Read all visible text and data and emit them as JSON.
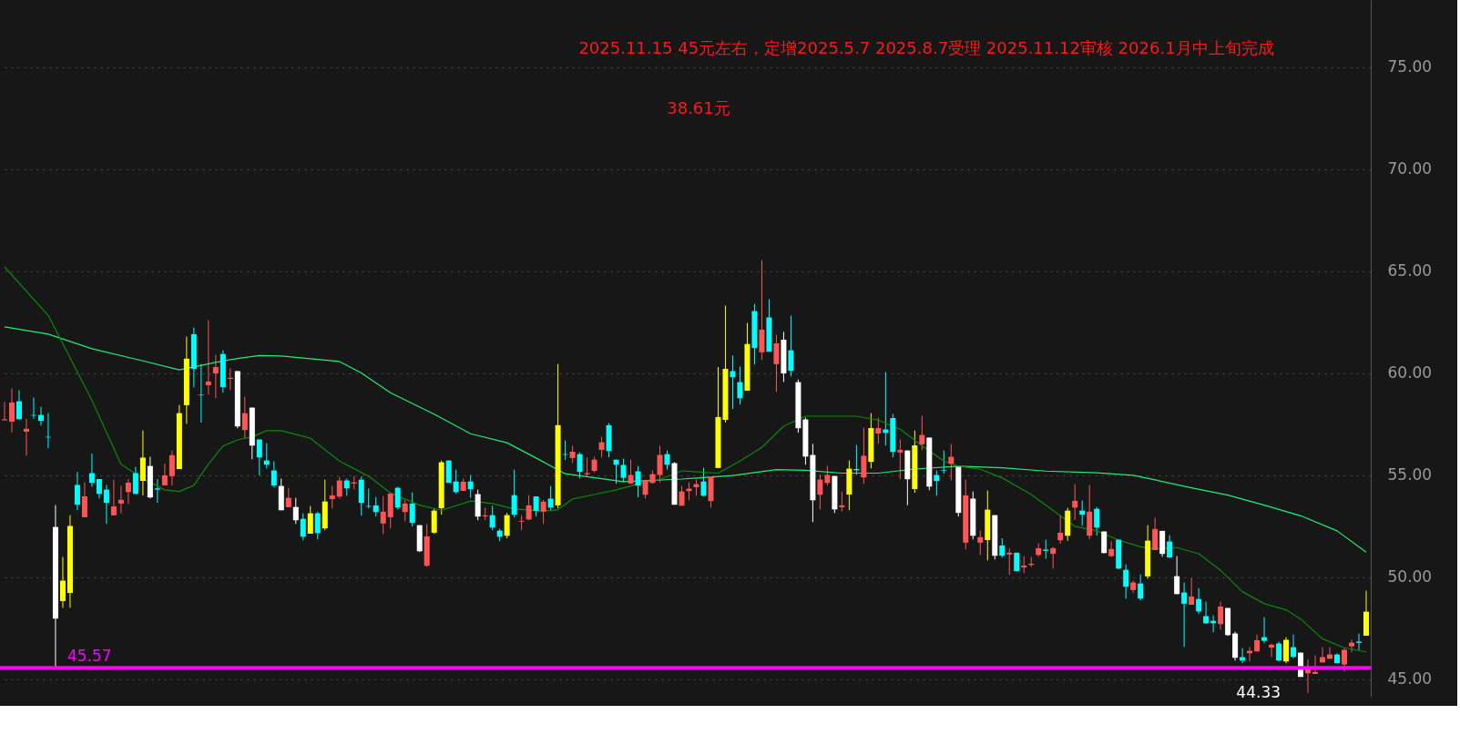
{
  "chart_data": {
    "type": "candlestick",
    "categories": [
      null,
      null,
      null,
      null,
      null,
      null,
      null,
      null,
      null,
      null,
      null,
      null,
      null,
      null,
      null,
      null,
      null,
      null,
      null,
      null,
      null,
      null,
      null,
      null,
      null,
      null,
      null,
      null,
      null,
      null,
      null,
      null,
      null,
      null,
      null,
      null,
      null,
      null,
      null,
      null,
      null,
      null,
      null,
      null,
      null,
      null,
      null,
      null,
      null,
      null,
      null,
      null,
      null,
      null,
      null,
      null,
      null,
      null,
      null,
      null,
      null,
      null,
      null,
      null,
      null,
      null,
      null,
      null,
      null,
      null,
      null,
      null,
      null,
      null,
      null,
      null,
      null,
      null,
      null,
      null,
      null,
      null,
      null,
      null,
      null,
      null,
      null,
      null,
      null,
      null,
      null,
      null,
      null,
      null,
      null,
      null,
      null,
      null,
      null,
      null,
      null,
      null,
      null,
      null,
      null,
      null,
      null,
      null,
      null,
      null,
      null,
      null,
      null,
      null,
      null,
      null,
      null,
      null,
      null,
      null,
      null,
      null,
      null,
      null,
      null,
      null,
      null,
      null,
      null,
      null,
      null,
      null,
      null,
      null,
      null,
      null,
      null,
      null,
      null,
      null,
      null,
      null,
      null,
      null,
      null,
      null,
      null,
      null,
      null,
      null,
      null,
      null,
      null,
      null,
      null,
      null,
      null,
      null,
      null,
      null,
      null,
      null,
      null,
      null,
      null,
      null,
      null,
      null,
      null,
      null,
      null,
      null,
      null,
      null,
      null,
      null,
      null,
      null,
      null,
      null,
      null,
      null,
      null,
      null,
      null,
      null,
      null,
      null
    ],
    "ohlc": [
      [
        57.7,
        58.6,
        57.7,
        57.75
      ],
      [
        57.63,
        59.26,
        57.11,
        58.57
      ],
      [
        58.63,
        59.17,
        57.75,
        57.75
      ],
      [
        57.14,
        57.78,
        55.97,
        57.28
      ],
      [
        57.96,
        58.81,
        57.78,
        57.93
      ],
      [
        57.96,
        58.36,
        57.44,
        57.67
      ],
      [
        56.89,
        58.05,
        56.33,
        56.86
      ],
      [
        52.47,
        53.54,
        45.57,
        47.98
      ],
      [
        48.84,
        51.0,
        48.51,
        49.84
      ],
      [
        49.24,
        53.05,
        48.51,
        52.52
      ],
      [
        54.53,
        55.17,
        53.29,
        53.56
      ],
      [
        52.95,
        54.66,
        52.95,
        53.97
      ],
      [
        55.11,
        56.07,
        54.44,
        54.63
      ],
      [
        54.82,
        54.82,
        53.87,
        54.09
      ],
      [
        54.3,
        54.53,
        52.62,
        53.65
      ],
      [
        53.04,
        54.78,
        53.04,
        53.48
      ],
      [
        53.62,
        54.48,
        53.13,
        53.8
      ],
      [
        54.18,
        54.82,
        53.6,
        54.64
      ],
      [
        55.11,
        55.42,
        54.09,
        54.09
      ],
      [
        54.73,
        57.2,
        54.01,
        55.87
      ],
      [
        55.46,
        55.91,
        53.87,
        53.92
      ],
      [
        54.36,
        54.82,
        53.65,
        54.3
      ],
      [
        54.51,
        55.58,
        54.51,
        55.0
      ],
      [
        54.96,
        56.22,
        54.51,
        55.99
      ],
      [
        55.31,
        58.45,
        55.31,
        58.05
      ],
      [
        58.44,
        61.8,
        57.53,
        60.72
      ],
      [
        61.92,
        62.25,
        59.32,
        60.22
      ],
      [
        58.95,
        60.46,
        57.58,
        58.92
      ],
      [
        59.42,
        62.61,
        58.96,
        59.6
      ],
      [
        60.0,
        60.91,
        58.78,
        60.31
      ],
      [
        60.95,
        61.13,
        59.05,
        59.32
      ],
      [
        59.73,
        60.24,
        59.18,
        59.78
      ],
      [
        60.11,
        60.11,
        57.31,
        57.4
      ],
      [
        57.22,
        58.86,
        56.82,
        58.05
      ],
      [
        58.32,
        58.32,
        55.79,
        56.46
      ],
      [
        56.76,
        56.76,
        54.99,
        55.88
      ],
      [
        55.73,
        56.58,
        55.34,
        55.52
      ],
      [
        55.24,
        55.69,
        54.41,
        54.5
      ],
      [
        54.48,
        54.84,
        53.29,
        53.29
      ],
      [
        53.44,
        54.39,
        53.44,
        53.9
      ],
      [
        53.45,
        53.9,
        52.62,
        52.8
      ],
      [
        52.87,
        53.14,
        51.82,
        51.99
      ],
      [
        52.14,
        53.5,
        52.14,
        53.14
      ],
      [
        53.14,
        53.22,
        51.86,
        52.17
      ],
      [
        52.4,
        54.79,
        52.31,
        53.72
      ],
      [
        53.84,
        54.48,
        53.38,
        54.02
      ],
      [
        53.96,
        54.93,
        53.87,
        54.75
      ],
      [
        54.75,
        54.84,
        54.0,
        54.36
      ],
      [
        54.6,
        54.97,
        54.32,
        54.66
      ],
      [
        54.79,
        54.93,
        53.02,
        53.65
      ],
      [
        53.5,
        54.35,
        53.38,
        53.47
      ],
      [
        53.53,
        53.94,
        52.98,
        53.2
      ],
      [
        52.64,
        53.99,
        52.13,
        53.22
      ],
      [
        52.95,
        54.11,
        52.4,
        54.11
      ],
      [
        54.39,
        54.44,
        53.33,
        53.42
      ],
      [
        53.2,
        53.8,
        52.75,
        53.62
      ],
      [
        53.62,
        54.17,
        52.49,
        52.67
      ],
      [
        52.56,
        52.56,
        51.24,
        51.28
      ],
      [
        50.57,
        52.61,
        50.52,
        52.01
      ],
      [
        52.19,
        53.39,
        52.13,
        53.27
      ],
      [
        53.39,
        55.73,
        53.08,
        55.64
      ],
      [
        55.73,
        55.73,
        54.63,
        54.63
      ],
      [
        54.7,
        55.28,
        54.09,
        54.18
      ],
      [
        54.24,
        54.84,
        54.24,
        54.69
      ],
      [
        54.7,
        55.02,
        53.9,
        54.32
      ],
      [
        54.08,
        54.3,
        52.8,
        52.98
      ],
      [
        52.99,
        53.41,
        52.8,
        53.04
      ],
      [
        53.05,
        53.51,
        52.31,
        52.44
      ],
      [
        52.29,
        52.38,
        51.77,
        51.99
      ],
      [
        52.04,
        53.16,
        51.91,
        53.05
      ],
      [
        54.03,
        55.28,
        52.93,
        53.07
      ],
      [
        52.73,
        53.05,
        52.31,
        52.77
      ],
      [
        52.84,
        54.03,
        52.8,
        53.53
      ],
      [
        53.97,
        53.97,
        52.98,
        53.26
      ],
      [
        53.22,
        53.8,
        52.62,
        53.71
      ],
      [
        53.86,
        54.48,
        53.29,
        53.42
      ],
      [
        53.53,
        60.46,
        53.39,
        57.46
      ],
      [
        56.04,
        56.71,
        55.75,
        56.01
      ],
      [
        55.85,
        56.45,
        55.61,
        56.16
      ],
      [
        56.04,
        56.13,
        54.85,
        55.17
      ],
      [
        55.05,
        55.87,
        54.96,
        55.11
      ],
      [
        55.22,
        55.91,
        55.14,
        55.77
      ],
      [
        56.25,
        56.89,
        55.88,
        56.62
      ],
      [
        57.46,
        57.56,
        55.88,
        56.19
      ],
      [
        55.77,
        55.77,
        54.58,
        55.52
      ],
      [
        55.51,
        55.82,
        54.66,
        54.88
      ],
      [
        54.6,
        55.77,
        54.6,
        55.02
      ],
      [
        55.2,
        55.46,
        53.92,
        54.5
      ],
      [
        54.05,
        54.79,
        53.87,
        54.75
      ],
      [
        54.63,
        55.24,
        54.58,
        55.06
      ],
      [
        55.02,
        56.45,
        54.66,
        56.0
      ],
      [
        56.04,
        56.22,
        55.28,
        55.52
      ],
      [
        55.6,
        55.64,
        53.56,
        53.56
      ],
      [
        53.51,
        54.48,
        53.51,
        54.21
      ],
      [
        54.23,
        54.66,
        53.78,
        54.35
      ],
      [
        54.42,
        54.79,
        54.0,
        54.57
      ],
      [
        54.7,
        55.37,
        53.96,
        54.0
      ],
      [
        53.74,
        54.91,
        53.42,
        54.91
      ],
      [
        55.36,
        60.31,
        55.36,
        57.86
      ],
      [
        57.72,
        63.32,
        57.59,
        60.22
      ],
      [
        60.11,
        60.87,
        58.25,
        59.81
      ],
      [
        59.57,
        60.33,
        58.47,
        58.78
      ],
      [
        59.15,
        62.47,
        59.15,
        61.44
      ],
      [
        63.05,
        63.41,
        60.43,
        61.24
      ],
      [
        61.03,
        65.55,
        60.66,
        62.14
      ],
      [
        62.74,
        63.63,
        61.06,
        61.06
      ],
      [
        60.45,
        61.89,
        59.09,
        61.47
      ],
      [
        61.65,
        62.03,
        59.58,
        60.0
      ],
      [
        61.13,
        62.83,
        59.85,
        60.12
      ],
      [
        59.57,
        59.7,
        57.09,
        57.31
      ],
      [
        57.74,
        57.83,
        55.52,
        55.92
      ],
      [
        56.0,
        56.54,
        52.71,
        53.78
      ],
      [
        54.05,
        55.05,
        53.33,
        54.79
      ],
      [
        54.63,
        55.46,
        54.5,
        55.02
      ],
      [
        54.97,
        54.97,
        53.15,
        53.33
      ],
      [
        53.44,
        54.21,
        53.24,
        53.53
      ],
      [
        54.06,
        55.73,
        53.29,
        55.33
      ],
      [
        55.31,
        56.49,
        55.02,
        55.25
      ],
      [
        54.9,
        57.34,
        54.58,
        55.96
      ],
      [
        55.66,
        58.05,
        55.34,
        57.32
      ],
      [
        57.05,
        57.83,
        56.55,
        57.32
      ],
      [
        57.25,
        60.06,
        56.46,
        57.08
      ],
      [
        57.81,
        58.01,
        55.88,
        56.15
      ],
      [
        56.12,
        56.76,
        54.81,
        56.25
      ],
      [
        56.22,
        56.22,
        53.54,
        54.81
      ],
      [
        54.33,
        57.2,
        54.15,
        56.47
      ],
      [
        56.52,
        57.92,
        56.24,
        56.98
      ],
      [
        56.85,
        56.85,
        54.27,
        54.45
      ],
      [
        55.02,
        55.24,
        54.0,
        54.72
      ],
      [
        55.25,
        56.22,
        55.08,
        55.22
      ],
      [
        55.57,
        56.54,
        54.76,
        55.91
      ],
      [
        55.42,
        55.42,
        52.98,
        53.16
      ],
      [
        51.7,
        54.79,
        51.37,
        54.02
      ],
      [
        53.86,
        54.21,
        51.86,
        52.04
      ],
      [
        51.7,
        52.29,
        51.1,
        51.97
      ],
      [
        51.83,
        54.26,
        50.83,
        53.32
      ],
      [
        53.05,
        53.05,
        50.88,
        51.06
      ],
      [
        51.56,
        51.92,
        50.97,
        51.06
      ],
      [
        51.12,
        51.42,
        50.12,
        51.21
      ],
      [
        51.21,
        51.21,
        50.3,
        50.3
      ],
      [
        50.49,
        51.04,
        50.21,
        50.58
      ],
      [
        50.61,
        51.0,
        50.52,
        50.67
      ],
      [
        51.1,
        51.67,
        51.01,
        51.43
      ],
      [
        51.36,
        51.85,
        50.92,
        51.3
      ],
      [
        51.15,
        51.49,
        50.43,
        51.43
      ],
      [
        51.82,
        53.05,
        51.65,
        52.19
      ],
      [
        52.04,
        53.41,
        51.79,
        53.27
      ],
      [
        53.42,
        54.57,
        52.81,
        53.75
      ],
      [
        53.27,
        53.77,
        52.53,
        53.07
      ],
      [
        52.04,
        54.53,
        51.86,
        53.22
      ],
      [
        53.36,
        53.45,
        52.05,
        52.44
      ],
      [
        52.25,
        52.25,
        51.19,
        51.19
      ],
      [
        51.04,
        51.76,
        51.0,
        51.39
      ],
      [
        51.85,
        51.85,
        50.39,
        50.43
      ],
      [
        50.37,
        50.64,
        48.96,
        49.54
      ],
      [
        49.38,
        49.84,
        49.23,
        49.75
      ],
      [
        49.7,
        50.15,
        48.87,
        48.96
      ],
      [
        50.05,
        52.56,
        49.94,
        51.8
      ],
      [
        51.34,
        52.92,
        51.34,
        52.37
      ],
      [
        52.28,
        52.28,
        51.01,
        51.15
      ],
      [
        51.76,
        52.07,
        50.97,
        50.97
      ],
      [
        50.06,
        51.04,
        49.18,
        49.18
      ],
      [
        49.26,
        49.75,
        46.59,
        48.71
      ],
      [
        48.66,
        49.97,
        48.66,
        49.06
      ],
      [
        48.94,
        49.48,
        48.2,
        48.33
      ],
      [
        48.1,
        48.81,
        47.71,
        47.75
      ],
      [
        47.87,
        48.14,
        47.31,
        47.75
      ],
      [
        47.71,
        48.81,
        47.44,
        48.57
      ],
      [
        48.5,
        48.5,
        47.13,
        47.17
      ],
      [
        47.25,
        47.34,
        45.92,
        46.06
      ],
      [
        46.09,
        46.53,
        45.79,
        45.92
      ],
      [
        46.28,
        46.58,
        45.88,
        46.4
      ],
      [
        46.37,
        47.2,
        46.37,
        46.92
      ],
      [
        47.07,
        48.05,
        46.77,
        46.89
      ],
      [
        46.56,
        46.76,
        46.1,
        46.7
      ],
      [
        46.76,
        46.85,
        45.88,
        45.92
      ],
      [
        45.88,
        47.07,
        45.79,
        46.94
      ],
      [
        46.58,
        47.2,
        46.03,
        46.1
      ],
      [
        46.31,
        46.31,
        45.12,
        45.12
      ],
      [
        45.3,
        45.99,
        44.33,
        45.54
      ],
      [
        45.27,
        46.18,
        45.27,
        45.36
      ],
      [
        45.83,
        46.58,
        45.83,
        46.09
      ],
      [
        46.01,
        46.58,
        46.01,
        46.22
      ],
      [
        46.22,
        46.27,
        45.79,
        45.79
      ],
      [
        45.73,
        46.53,
        45.39,
        46.45
      ],
      [
        46.62,
        46.94,
        46.33,
        46.8
      ],
      [
        46.85,
        47.25,
        46.4,
        46.79
      ],
      [
        47.14,
        49.35,
        47.14,
        48.32
      ]
    ],
    "colors": [
      "#ff5555",
      "#ff5555",
      "#00ffff",
      "#ff5555",
      "#00ffff",
      "#00ffff",
      "#00ffff",
      "#ffffff",
      "#ffff00",
      "#ffff00",
      "#00ffff",
      "#ff5555",
      "#00ffff",
      "#00ffff",
      "#00ffff",
      "#ff5555",
      "#ff5555",
      "#ff5555",
      "#00ffff",
      "#ffff00",
      "#ffffff",
      "#00ffff",
      "#ff5555",
      "#ff5555",
      "#ffff00",
      "#ffff00",
      "#00ffff",
      "#00ffff",
      "#ff5555",
      "#ff5555",
      "#00ffff",
      "#ff5555",
      "#ffffff",
      "#ff5555",
      "#ffffff",
      "#00ffff",
      "#00ffff",
      "#00ffff",
      "#ffffff",
      "#ff5555",
      "#ffffff",
      "#00ffff",
      "#ffff00",
      "#00ffff",
      "#ffff00",
      "#ff5555",
      "#ff5555",
      "#00ffff",
      "#ff5555",
      "#00ffff",
      "#00ffff",
      "#00ffff",
      "#ff5555",
      "#ff5555",
      "#00ffff",
      "#ff5555",
      "#00ffff",
      "#ffffff",
      "#ff5555",
      "#ffff00",
      "#ffff00",
      "#00ffff",
      "#00ffff",
      "#ff5555",
      "#00ffff",
      "#ffffff",
      "#ff5555",
      "#00ffff",
      "#00ffff",
      "#ffff00",
      "#00ffff",
      "#ff5555",
      "#ff5555",
      "#00ffff",
      "#ff5555",
      "#00ffff",
      "#ffff00",
      "#00ffff",
      "#ff5555",
      "#00ffff",
      "#ff5555",
      "#ff5555",
      "#ff5555",
      "#00ffff",
      "#00ffff",
      "#00ffff",
      "#ff5555",
      "#00ffff",
      "#ff5555",
      "#ff5555",
      "#ff5555",
      "#00ffff",
      "#ffffff",
      "#ff5555",
      "#ff5555",
      "#ff5555",
      "#00ffff",
      "#ff5555",
      "#ffff00",
      "#ffff00",
      "#00ffff",
      "#00ffff",
      "#ffff00",
      "#00ffff",
      "#ff5555",
      "#00ffff",
      "#ff5555",
      "#ffffff",
      "#00ffff",
      "#ffffff",
      "#ffffff",
      "#ffffff",
      "#ff5555",
      "#ff5555",
      "#ffffff",
      "#ff5555",
      "#ffff00",
      "#00ffff",
      "#ff5555",
      "#ffff00",
      "#ff5555",
      "#00ffff",
      "#00ffff",
      "#ff5555",
      "#ffffff",
      "#ffff00",
      "#ff5555",
      "#ffffff",
      "#00ffff",
      "#00ffff",
      "#ff5555",
      "#ffffff",
      "#ff5555",
      "#ffffff",
      "#ff5555",
      "#ffff00",
      "#ffffff",
      "#00ffff",
      "#ff5555",
      "#00ffff",
      "#ff5555",
      "#ff5555",
      "#ff5555",
      "#00ffff",
      "#ff5555",
      "#ff5555",
      "#ffff00",
      "#ff5555",
      "#00ffff",
      "#ff5555",
      "#00ffff",
      "#ffffff",
      "#ff5555",
      "#00ffff",
      "#00ffff",
      "#ff5555",
      "#00ffff",
      "#ffff00",
      "#ff5555",
      "#ffffff",
      "#00ffff",
      "#ffffff",
      "#00ffff",
      "#ff5555",
      "#00ffff",
      "#00ffff",
      "#00ffff",
      "#ff5555",
      "#ffffff",
      "#ffffff",
      "#00ffff",
      "#ff5555",
      "#ff5555",
      "#00ffff",
      "#ff5555",
      "#00ffff",
      "#ffff00",
      "#00ffff",
      "#ffffff",
      "#ff5555",
      "#ff5555",
      "#ff5555",
      "#ff5555",
      "#00ffff",
      "#ff5555",
      "#ff5555",
      "#00ffff",
      "#ffff00"
    ],
    "series": [
      {
        "type": "line",
        "color": "#22ee77",
        "values": [
          62.28,
          null,
          null,
          null,
          null,
          null,
          61.92,
          null,
          null,
          null,
          null,
          null,
          61.21,
          null,
          null,
          null,
          null,
          null,
          null,
          60.61,
          null,
          null,
          null,
          null,
          60.17,
          null,
          null,
          null,
          null,
          60.54,
          null,
          null,
          60.73,
          null,
          null,
          60.87,
          null,
          null,
          60.85,
          null,
          null,
          null,
          null,
          null,
          null,
          null,
          60.58,
          null,
          null,
          60.02,
          null,
          null,
          null,
          59.05,
          null,
          null,
          null,
          null,
          null,
          58.0,
          null,
          null,
          null,
          null,
          57.04,
          null,
          null,
          null,
          null,
          56.6,
          null,
          null,
          null,
          55.85,
          null,
          null,
          null,
          55.08,
          null,
          null,
          null,
          null,
          null,
          null,
          null,
          54.69,
          null,
          null,
          null,
          null,
          null,
          null,
          null,
          54.82,
          null,
          null,
          null,
          null,
          null,
          null,
          54.99,
          null,
          null,
          null,
          null,
          null,
          55.28,
          null,
          null,
          null,
          55.25,
          null,
          null,
          null,
          null,
          55.11,
          null,
          null,
          null,
          null,
          55.11,
          null,
          null,
          null,
          null,
          55.31,
          null,
          null,
          null,
          null,
          null,
          55.45,
          null,
          null,
          null,
          null,
          null,
          55.37,
          null,
          null,
          null,
          null,
          null,
          55.21,
          null,
          null,
          null,
          null,
          null,
          null,
          55.13,
          null,
          null,
          null,
          null,
          55.0,
          null,
          null,
          54.78,
          null,
          null,
          null,
          null,
          54.39,
          null,
          null,
          null,
          null,
          54.03,
          null,
          null,
          null,
          null,
          53.54,
          null,
          null,
          null,
          null,
          53.02,
          null,
          null,
          null,
          null,
          52.28,
          null,
          null,
          null,
          51.24
        ]
      },
      {
        "type": "line",
        "color": "#0a8a0a",
        "values": [
          65.22,
          null,
          null,
          null,
          null,
          null,
          62.84,
          null,
          null,
          null,
          null,
          null,
          58.68,
          null,
          null,
          null,
          55.55,
          null,
          null,
          54.84,
          null,
          null,
          54.29,
          null,
          54.21,
          null,
          54.51,
          null,
          55.55,
          null,
          56.44,
          null,
          56.74,
          null,
          56.89,
          null,
          57.19,
          null,
          57.19,
          null,
          null,
          null,
          56.82,
          null,
          null,
          null,
          55.7,
          null,
          null,
          null,
          54.96,
          null,
          null,
          54.14,
          null,
          null,
          null,
          53.54,
          null,
          null,
          53.29,
          null,
          null,
          null,
          53.74,
          null,
          null,
          53.62,
          null,
          null,
          53.35,
          null,
          null,
          null,
          53.25,
          null,
          53.32,
          null,
          53.84,
          null,
          null,
          54.06,
          null,
          null,
          54.29,
          null,
          null,
          54.58,
          null,
          null,
          54.81,
          null,
          null,
          55.22,
          null,
          null,
          null,
          null,
          55.11,
          null,
          null,
          55.7,
          null,
          null,
          56.37,
          null,
          null,
          57.41,
          null,
          null,
          57.9,
          null,
          null,
          57.9,
          null,
          null,
          null,
          57.9,
          null,
          null,
          57.71,
          null,
          null,
          57.26,
          null,
          null,
          56.45,
          null,
          null,
          55.7,
          null,
          55.45,
          null,
          null,
          55.3,
          null,
          null,
          54.88,
          null,
          null,
          null,
          54.06,
          null,
          null,
          null,
          53.02,
          null,
          52.5,
          null,
          null,
          52.28,
          null,
          null,
          51.83,
          null,
          null,
          51.5,
          null,
          51.39,
          null,
          null,
          51.46,
          null,
          null,
          51.16,
          null,
          null,
          50.34,
          null,
          null,
          49.3,
          null,
          null,
          48.71,
          null,
          null,
          48.41,
          null,
          47.96,
          null,
          null,
          46.99,
          null,
          null,
          46.55,
          null,
          null,
          46.35
        ]
      }
    ],
    "ylim": [
      44.15,
      78.3
    ],
    "yticks": [
      {
        "value": 45,
        "label": "45.00"
      },
      {
        "value": 50,
        "label": "50.00"
      },
      {
        "value": 55,
        "label": "55.00"
      },
      {
        "value": 60,
        "label": "60.00"
      },
      {
        "value": 65,
        "label": "65.00"
      },
      {
        "value": 70,
        "label": "70.00"
      },
      {
        "value": 75,
        "label": "75.00"
      }
    ],
    "grid": "y",
    "tick_labels": "y",
    "ref_lines": [
      {
        "axis": "y",
        "value": 45.57,
        "label": "45.57",
        "color": "#ff00ff"
      }
    ],
    "annotations": [
      "2025.11.15  45元左右，定增2025.5.7 2025.8.7受理 2025.11.12审核 2026.1月中上旬完成",
      "38.61元",
      "44.33"
    ]
  }
}
